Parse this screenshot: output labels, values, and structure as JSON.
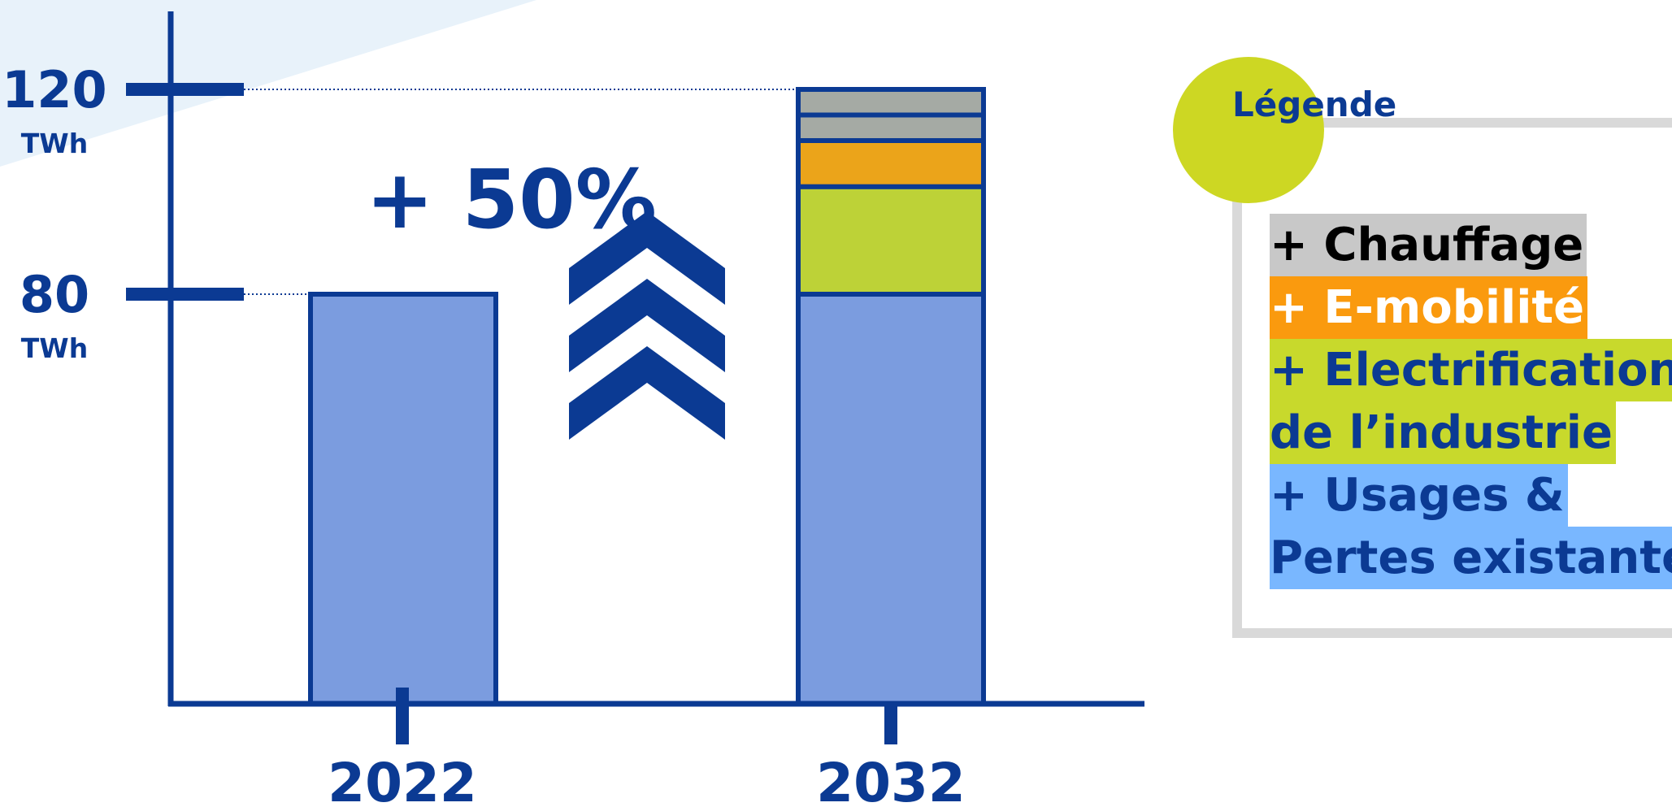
{
  "chart_data": {
    "type": "bar",
    "stacked": true,
    "categories": [
      "2022",
      "2032"
    ],
    "ylim": [
      0,
      120
    ],
    "y_ticks": [
      {
        "value": 80,
        "label": "80",
        "unit": "TWh"
      },
      {
        "value": 120,
        "label": "120",
        "unit": "TWh"
      }
    ],
    "series": [
      {
        "name": "+ Usages & Pertes existantes",
        "values": [
          80,
          80
        ],
        "color": "#7b9cdf"
      },
      {
        "name": "+ Electrification de l’industrie",
        "values": [
          0,
          21
        ],
        "color": "#bdd237"
      },
      {
        "name": "+ E-mobilité",
        "values": [
          0,
          9
        ],
        "color": "#eba41a"
      },
      {
        "name": "+ Chauffage",
        "values": [
          0,
          5
        ],
        "color": "#a5aaa4"
      },
      {
        "name": "",
        "values": [
          0,
          5
        ],
        "color": "#a5aaa4"
      }
    ],
    "annotation": "+ 50%",
    "axis_color": "#0b3a93"
  },
  "legend": {
    "title": "Légende",
    "items": [
      {
        "lines": [
          "+ Chauffage"
        ],
        "bg": "#c8c8c8",
        "color": "#000000"
      },
      {
        "lines": [
          "+ E-mobilité"
        ],
        "bg": "#fa9a0e",
        "color": "#ffffff"
      },
      {
        "lines": [
          "+ Electrification",
          "de l’industrie"
        ],
        "bg": "#c8d92c",
        "color": "#0b3a93"
      },
      {
        "lines": [
          "+ Usages &",
          "Pertes existantes"
        ],
        "bg": "#79b7ff",
        "color": "#0b3a93"
      }
    ]
  },
  "decor": {
    "corner_color": "#e8f2fa",
    "arrows_icon": "triple-chevron-up-icon"
  }
}
